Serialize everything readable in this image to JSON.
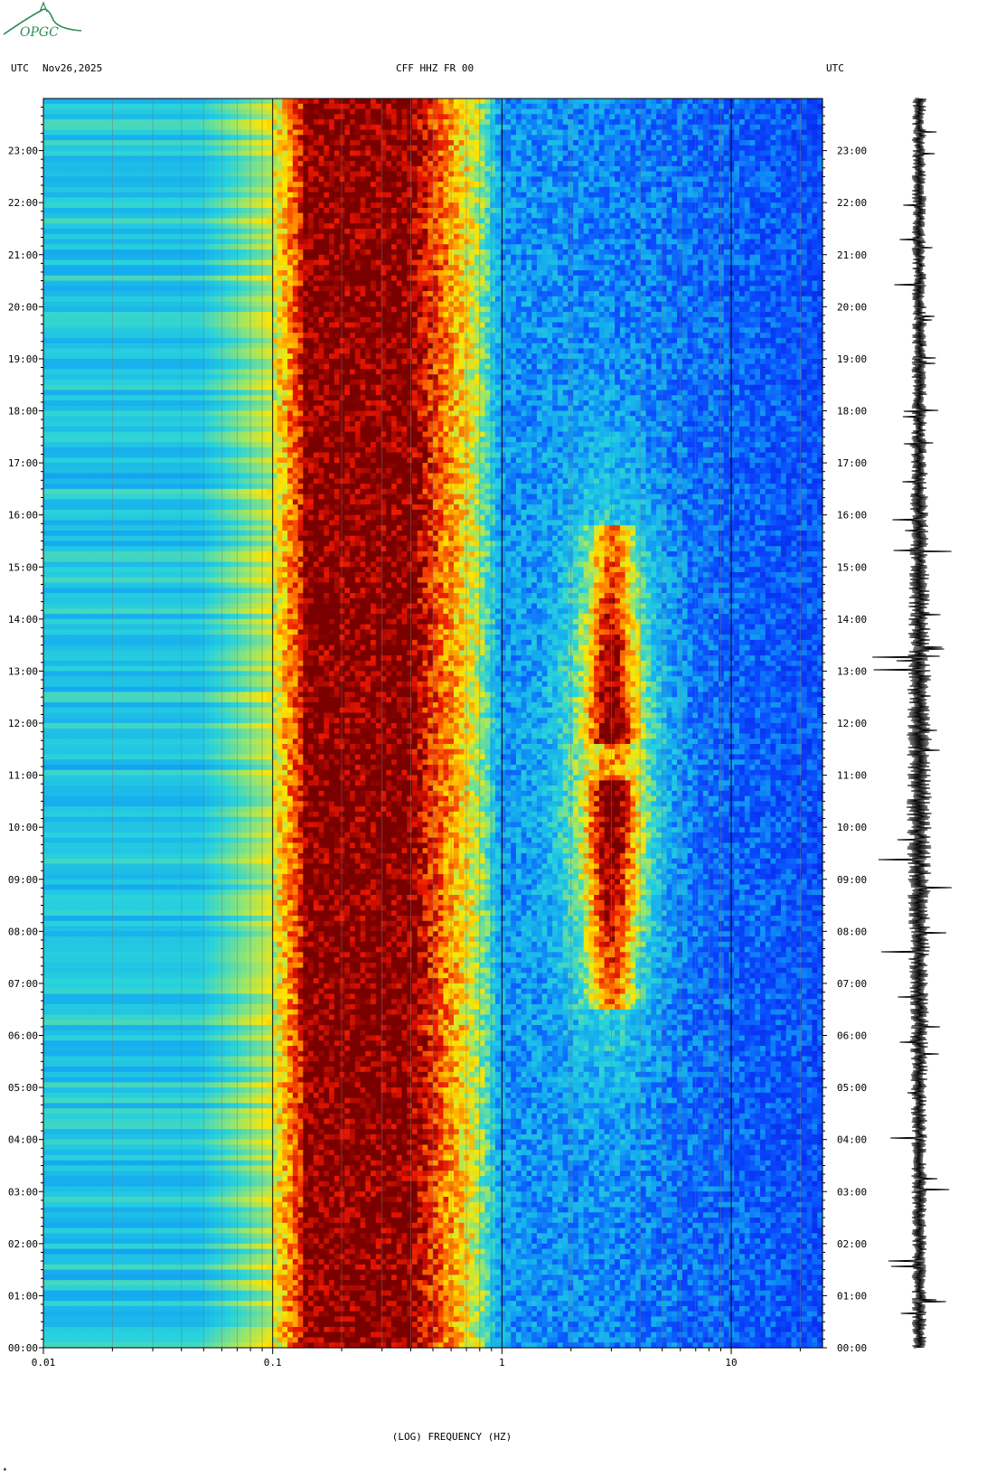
{
  "header": {
    "left_tz": "UTC",
    "date": "Nov26,2025",
    "station": "CFF HHZ FR 00",
    "right_tz": "UTC"
  },
  "logo": {
    "text": "OPGC",
    "color": "#2e8b57"
  },
  "colors": {
    "low": "#0a2cff",
    "mid_low": "#17b6f0",
    "mid": "#9be86a",
    "mid_high": "#ffe400",
    "high": "#ff2e00",
    "max": "#7a0000"
  },
  "chart_data": {
    "type": "heatmap",
    "title": "CFF HHZ FR 00",
    "xlabel": "(LOG) FREQUENCY (HZ)",
    "x_scale": "log",
    "xlim": [
      0.01,
      25
    ],
    "x_ticks": [
      {
        "value": 0.01,
        "label": "0.01"
      },
      {
        "value": 0.1,
        "label": "0.1"
      },
      {
        "value": 1,
        "label": "1"
      },
      {
        "value": 10,
        "label": "10"
      }
    ],
    "ylim": [
      "00:00",
      "24:00"
    ],
    "y_ticks": [
      "00:00",
      "01:00",
      "02:00",
      "03:00",
      "04:00",
      "05:00",
      "06:00",
      "07:00",
      "08:00",
      "09:00",
      "10:00",
      "11:00",
      "12:00",
      "13:00",
      "14:00",
      "15:00",
      "16:00",
      "17:00",
      "18:00",
      "19:00",
      "20:00",
      "21:00",
      "22:00",
      "23:00"
    ],
    "features": [
      {
        "name": "microseism band",
        "freq_range_hz": [
          0.14,
          0.45
        ],
        "level": "max"
      },
      {
        "name": "cultural noise (daytime)",
        "freq_range_hz": [
          2.5,
          4.0
        ],
        "time_range": [
          "06:30",
          "15:50"
        ],
        "level": "high"
      }
    ],
    "trace_panel": "seismogram trace"
  }
}
